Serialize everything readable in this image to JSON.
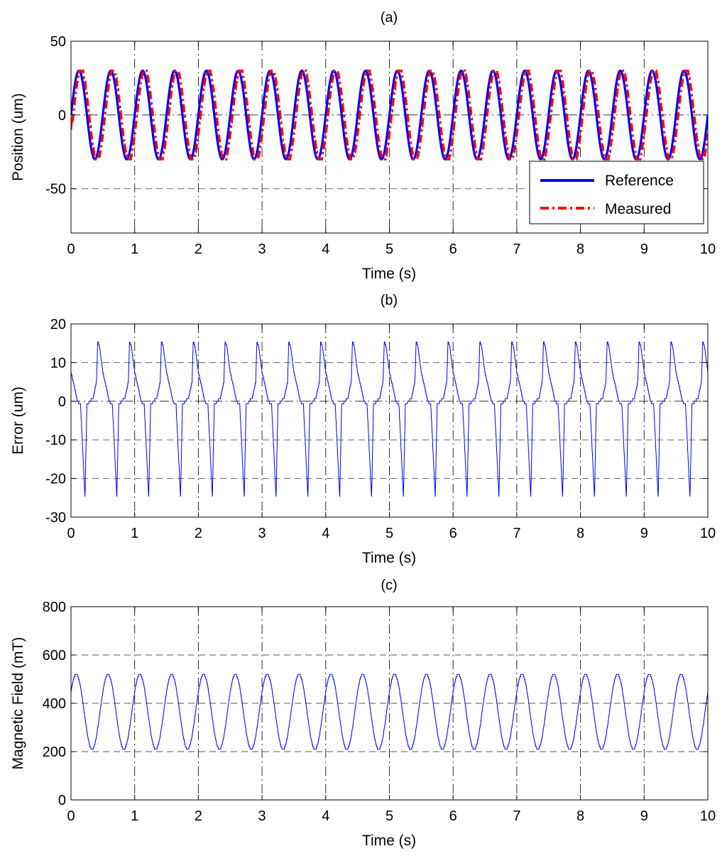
{
  "chart_data": [
    {
      "type": "line",
      "title": "(a)",
      "xlabel": "Time (s)",
      "ylabel": "Position (um)",
      "xlim": [
        0,
        10
      ],
      "ylim": [
        -80,
        50
      ],
      "xticks": [
        0,
        1,
        2,
        3,
        4,
        5,
        6,
        7,
        8,
        9,
        10
      ],
      "yticks": [
        -50,
        0,
        50
      ],
      "grid": true,
      "legend_position": "bottom-right",
      "signal": {
        "frequency_hz": 2,
        "amplitude_um": 30,
        "duration_s": 10
      },
      "series": [
        {
          "name": "Reference",
          "color": "#0000ff",
          "style": "solid",
          "x": [
            0,
            0.125,
            0.25,
            0.375,
            0.5,
            0.625,
            0.75,
            0.875,
            1.0
          ],
          "values": [
            0,
            30,
            0,
            -30,
            0,
            30,
            0,
            -30,
            0
          ]
        },
        {
          "name": "Measured",
          "color": "#ff0000",
          "style": "dash-dot",
          "x": [
            0,
            0.16,
            0.29,
            0.41,
            0.54,
            0.66,
            0.79,
            0.91,
            1.04
          ],
          "values": [
            -10,
            31,
            0,
            -31,
            0,
            31,
            0,
            -31,
            0
          ]
        }
      ]
    },
    {
      "type": "line",
      "title": "(b)",
      "xlabel": "Time (s)",
      "ylabel": "Error (um)",
      "xlim": [
        0,
        10
      ],
      "ylim": [
        -30,
        20
      ],
      "xticks": [
        0,
        1,
        2,
        3,
        4,
        5,
        6,
        7,
        8,
        9,
        10
      ],
      "yticks": [
        -30,
        -20,
        -10,
        0,
        10,
        20
      ],
      "grid": true,
      "signal": {
        "frequency_hz": 2,
        "max_um": 15.5,
        "min_um": -25
      },
      "series": [
        {
          "color": "#0000ff",
          "x": [
            0,
            0.05,
            0.1,
            0.15,
            0.2,
            0.22,
            0.25,
            0.3,
            0.35,
            0.4,
            0.42,
            0.45,
            0.5
          ],
          "values": [
            7.5,
            4,
            0,
            -1,
            -18,
            -25,
            -1,
            0,
            1,
            5,
            15.5,
            14,
            7.5
          ]
        }
      ]
    },
    {
      "type": "line",
      "title": "(c)",
      "xlabel": "Time (s)",
      "ylabel": "Magnetic Field (mT)",
      "xlim": [
        0,
        10
      ],
      "ylim": [
        0,
        800
      ],
      "xticks": [
        0,
        1,
        2,
        3,
        4,
        5,
        6,
        7,
        8,
        9,
        10
      ],
      "yticks": [
        0,
        200,
        400,
        600,
        800
      ],
      "grid": true,
      "signal": {
        "frequency_hz": 2,
        "max_mT": 520,
        "min_mT": 210
      },
      "series": [
        {
          "color": "#0000ff",
          "x": [
            0,
            0.1,
            0.2,
            0.3,
            0.35,
            0.4,
            0.5
          ],
          "values": [
            430,
            520,
            380,
            220,
            210,
            220,
            430
          ]
        }
      ]
    }
  ]
}
